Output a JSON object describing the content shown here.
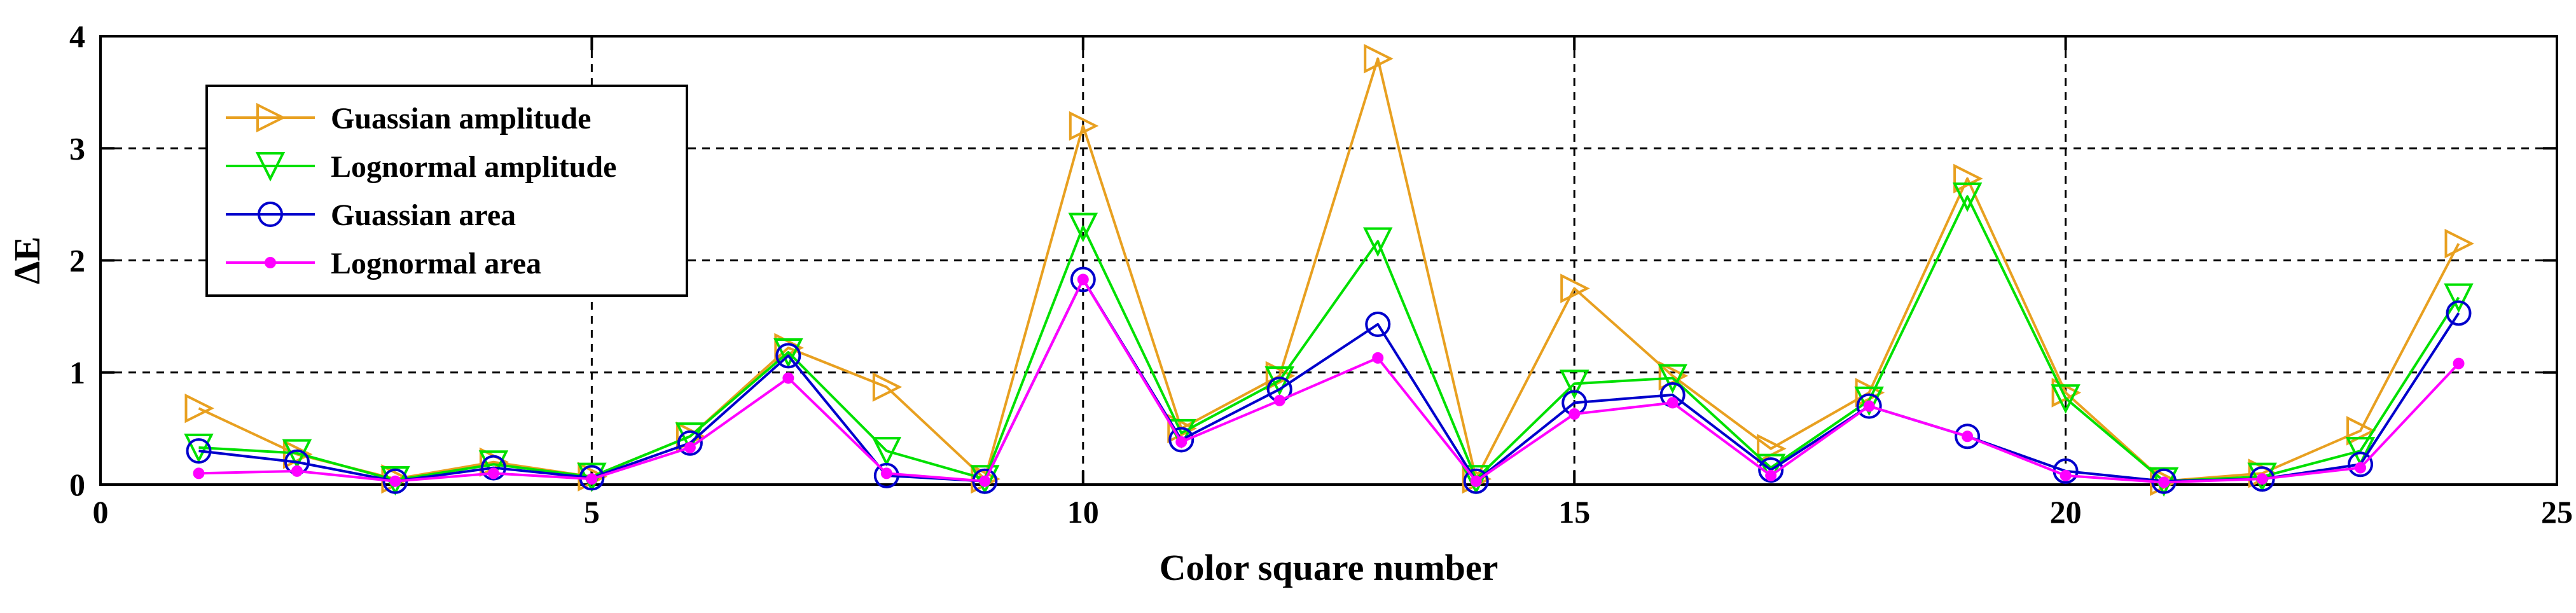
{
  "chart_data": {
    "type": "line",
    "title": "",
    "xlabel": "Color square number",
    "ylabel": "ΔE",
    "xlim": [
      0,
      25
    ],
    "ylim": [
      0,
      4
    ],
    "xticks": [
      0,
      5,
      10,
      15,
      20,
      25
    ],
    "yticks": [
      0,
      1,
      2,
      3,
      4
    ],
    "grid": true,
    "legend_position": "top-left",
    "x": [
      1,
      2,
      3,
      4,
      5,
      6,
      7,
      8,
      9,
      10,
      11,
      12,
      13,
      14,
      15,
      16,
      17,
      18,
      19,
      20,
      21,
      22,
      23,
      24
    ],
    "series": [
      {
        "name": "Guassian amplitude",
        "color": "#E8A020",
        "marker": "triangle-right",
        "values": [
          0.68,
          0.27,
          0.05,
          0.2,
          0.07,
          0.43,
          1.22,
          0.87,
          0.05,
          3.2,
          0.5,
          0.97,
          3.8,
          0.05,
          1.75,
          0.97,
          0.32,
          0.82,
          2.73,
          0.82,
          0.03,
          0.1,
          0.48,
          2.15
        ]
      },
      {
        "name": "Lognormal amplitude",
        "color": "#00E000",
        "marker": "triangle-down",
        "values": [
          0.33,
          0.28,
          0.04,
          0.18,
          0.07,
          0.43,
          1.18,
          0.3,
          0.05,
          2.3,
          0.46,
          0.93,
          2.17,
          0.05,
          0.9,
          0.95,
          0.15,
          0.75,
          2.57,
          0.77,
          0.03,
          0.07,
          0.3,
          1.67
        ]
      },
      {
        "name": "Guassian area",
        "color": "#0000CC",
        "marker": "circle",
        "values": [
          0.3,
          0.2,
          0.03,
          0.15,
          0.06,
          0.37,
          1.15,
          0.08,
          0.03,
          1.83,
          0.4,
          0.85,
          1.43,
          0.03,
          0.73,
          0.8,
          0.13,
          0.7,
          0.43,
          0.12,
          0.03,
          0.05,
          0.18,
          1.53
        ]
      },
      {
        "name": "Lognormal area",
        "color": "#FF00FF",
        "marker": "point",
        "values": [
          0.1,
          0.12,
          0.03,
          0.1,
          0.05,
          0.33,
          0.95,
          0.1,
          0.03,
          1.83,
          0.38,
          0.75,
          1.13,
          0.03,
          0.63,
          0.73,
          0.08,
          0.7,
          0.43,
          0.08,
          0.02,
          0.05,
          0.15,
          1.08
        ]
      }
    ]
  }
}
